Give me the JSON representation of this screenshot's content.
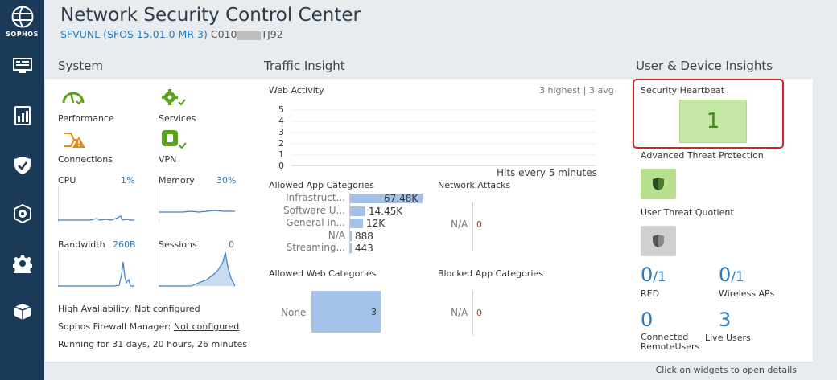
{
  "brand": {
    "name": "SOPHOS"
  },
  "header": {
    "title": "Network Security Control Center",
    "firmware": "SFVUNL (SFOS 15.01.0 MR-3)",
    "serial_prefix": "C010",
    "serial_suffix": "TJ92"
  },
  "sections": {
    "system": "System",
    "traffic": "Traffic Insight",
    "user": "User & Device Insights"
  },
  "system": {
    "services": [
      {
        "label": "Performance",
        "icon": "performance-icon"
      },
      {
        "label": "Services",
        "icon": "services-gear-icon"
      },
      {
        "label": "Connections",
        "icon": "connections-icon"
      },
      {
        "label": "VPN",
        "icon": "vpn-icon"
      }
    ],
    "cpu": {
      "label": "CPU",
      "value": "1%"
    },
    "memory": {
      "label": "Memory",
      "value": "30%"
    },
    "bandwidth": {
      "label": "Bandwidth",
      "value": "260B"
    },
    "sessions": {
      "label": "Sessions",
      "value": "0"
    },
    "ha_text": "High Availability: Not configured",
    "sfm_label": "Sophos Firewall Manager:",
    "sfm_link": "Not configured",
    "uptime": "Running for 31 days, 20 hours, 26 minutes"
  },
  "traffic": {
    "web_activity": {
      "title": "Web Activity",
      "meta": "3 highest | 3 avg",
      "yticks": [
        "5",
        "4",
        "3",
        "2",
        "1",
        "0"
      ],
      "footer": "Hits every 5 minutes"
    },
    "allowed_app": {
      "title": "Allowed App Categories",
      "rows": [
        {
          "label": "Infrastruct...",
          "value": "67.48K",
          "num": 67480
        },
        {
          "label": "Software U...",
          "value": "14.45K",
          "num": 14450
        },
        {
          "label": "General In...",
          "value": "12K",
          "num": 12000
        },
        {
          "label": "N/A",
          "value": "888",
          "num": 888
        },
        {
          "label": "Streaming...",
          "value": "443",
          "num": 443
        }
      ]
    },
    "network_attacks": {
      "title": "Network Attacks",
      "label": "N/A",
      "value": "0"
    },
    "allowed_web": {
      "title": "Allowed Web Categories",
      "label": "None",
      "value": "3"
    },
    "blocked_app": {
      "title": "Blocked App Categories",
      "label": "N/A",
      "value": "0"
    }
  },
  "user": {
    "heartbeat": {
      "title": "Security Heartbeat",
      "value": "1"
    },
    "atp": {
      "title": "Advanced Threat Protection"
    },
    "utq": {
      "title": "User Threat Quotient"
    },
    "red": {
      "num": "0",
      "den": "/1",
      "label": "RED"
    },
    "wireless": {
      "num": "0",
      "den": "/1",
      "label": "Wireless APs"
    },
    "connected": {
      "num": "0",
      "label": "Connected RemoteUsers"
    },
    "live": {
      "num": "3",
      "label": "Live Users"
    }
  },
  "footer_hint": "Click on widgets to open details",
  "colors": {
    "sidebar": "#1b3a57",
    "accent": "#2a7bbd",
    "green": "#5aa21a",
    "heartbeat_bg": "#c6e8a6",
    "bar": "#a4c2e8",
    "highlight": "#d62323"
  }
}
